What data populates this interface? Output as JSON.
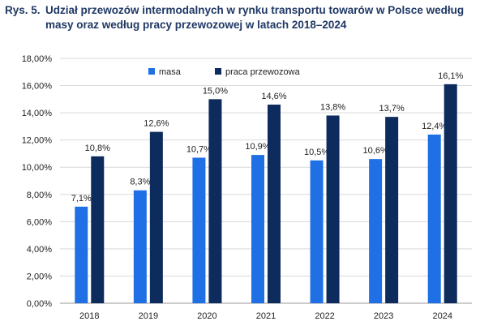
{
  "figure": {
    "prefix": "Rys. 5.",
    "title": "Udział przewozów intermodalnych w rynku transportu towarów w Polsce według masy oraz według pracy przewozowej w latach 2018–2024"
  },
  "colors": {
    "masa": "#1f6fe5",
    "praca": "#0d2b5c",
    "grid": "#d9d9d9",
    "axis": "#999999",
    "title": "#1f3864"
  },
  "chart_data": {
    "type": "bar",
    "categories": [
      "2018",
      "2019",
      "2020",
      "2021",
      "2022",
      "2023",
      "2024"
    ],
    "series": [
      {
        "name": "masa",
        "values": [
          7.1,
          8.3,
          10.7,
          10.9,
          10.5,
          10.6,
          12.4
        ],
        "labels": [
          "7,1%",
          "8,3%",
          "10,7%",
          "10,9%",
          "10,5%",
          "10,6%",
          "12,4%"
        ]
      },
      {
        "name": "praca przewozowa",
        "values": [
          10.8,
          12.6,
          15.0,
          14.6,
          13.8,
          13.7,
          16.1
        ],
        "labels": [
          "10,8%",
          "12,6%",
          "15,0%",
          "14,6%",
          "13,8%",
          "13,7%",
          "16,1%"
        ]
      }
    ],
    "yticks": [
      "0,00%",
      "2,00%",
      "4,00%",
      "6,00%",
      "8,00%",
      "10,00%",
      "12,00%",
      "14,00%",
      "16,00%",
      "18,00%"
    ],
    "ylim": [
      0,
      18
    ],
    "grid": true,
    "legend_position": "top-center"
  }
}
